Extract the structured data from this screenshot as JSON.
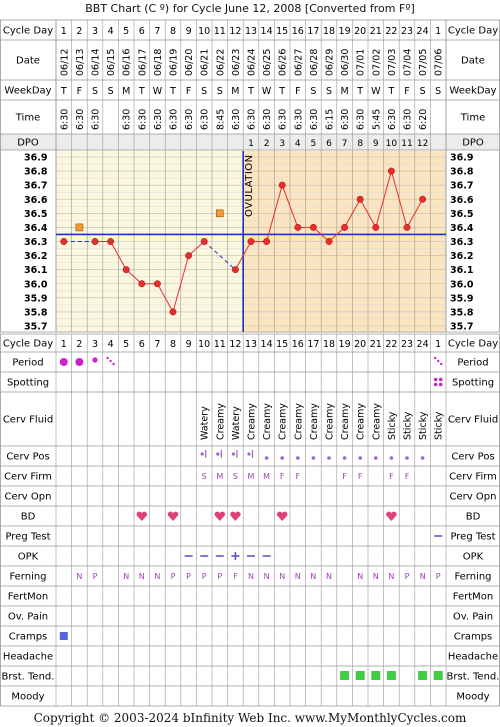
{
  "footer": "Copyright © 2003-2024 bInfinity Web Inc.    www.MyMonthlyCycles.com",
  "colors": {
    "temp_line": "#e03030",
    "grid": "#999999",
    "shade_pre": "#fbf7df",
    "shade_post": "#fbe4c0",
    "blue": "#2030c0",
    "heart": "#e0407a",
    "period": "#cc22cc",
    "green": "#44cc44",
    "ferning": "#9944aa",
    "cramp": "#5566dd"
  },
  "chart_data": {
    "type": "line",
    "title": "BBT Chart (C º) for Cycle June 12, 2008  [Converted from Fº]",
    "row_labels": {
      "cycle_day": "Cycle Day",
      "date": "Date",
      "weekday": "WeekDay",
      "time": "Time",
      "dpo": "DPO"
    },
    "cycle_days": [
      "1",
      "2",
      "3",
      "4",
      "5",
      "6",
      "7",
      "8",
      "9",
      "10",
      "11",
      "12",
      "13",
      "14",
      "15",
      "16",
      "17",
      "18",
      "19",
      "20",
      "21",
      "22",
      "23",
      "24",
      "1"
    ],
    "dates": [
      "06/12",
      "06/13",
      "06/14",
      "06/15",
      "06/16",
      "06/17",
      "06/18",
      "06/19",
      "06/20",
      "06/21",
      "06/22",
      "06/23",
      "06/24",
      "06/25",
      "06/26",
      "06/27",
      "06/28",
      "06/29",
      "06/30",
      "07/01",
      "07/02",
      "07/03",
      "07/04",
      "07/05",
      "07/06"
    ],
    "weekdays": [
      "T",
      "F",
      "S",
      "S",
      "M",
      "T",
      "W",
      "T",
      "F",
      "S",
      "S",
      "M",
      "T",
      "W",
      "T",
      "F",
      "S",
      "S",
      "M",
      "T",
      "W",
      "T",
      "F",
      "S",
      "S"
    ],
    "times": [
      "6:30",
      "6:30",
      "6:30",
      "",
      "6:30",
      "6:30",
      "6:30",
      "6:30",
      "6:30",
      "6:30",
      "8:45",
      "6:30",
      "6:30",
      "6:30",
      "6:30",
      "6:30",
      "6:30",
      "6:15",
      "6:30",
      "6:30",
      "5:45",
      "6:30",
      "6:30",
      "6:20",
      ""
    ],
    "dpo": [
      "",
      "",
      "",
      "",
      "",
      "",
      "",
      "",
      "",
      "",
      "",
      "",
      "1",
      "2",
      "3",
      "4",
      "5",
      "6",
      "7",
      "8",
      "9",
      "10",
      "11",
      "12",
      ""
    ],
    "y_ticks": [
      "36.9",
      "36.8",
      "36.7",
      "36.6",
      "36.5",
      "36.4",
      "36.3",
      "36.2",
      "36.1",
      "36.0",
      "35.9",
      "35.8",
      "35.7"
    ],
    "ylim": [
      35.7,
      36.9
    ],
    "temps": [
      36.3,
      null,
      36.3,
      36.3,
      36.1,
      36.0,
      36.0,
      35.8,
      36.2,
      36.3,
      null,
      36.1,
      36.3,
      36.3,
      36.7,
      36.4,
      36.4,
      36.3,
      36.4,
      36.6,
      36.4,
      36.8,
      36.4,
      36.6,
      null
    ],
    "discarded": [
      null,
      36.4,
      null,
      null,
      null,
      null,
      null,
      null,
      null,
      null,
      36.5,
      null,
      null,
      null,
      null,
      null,
      null,
      null,
      null,
      null,
      null,
      null,
      null,
      null,
      null
    ],
    "coverline": 36.35,
    "ovulation_day": 12,
    "ovulation_label": "OVULATION",
    "period": [
      "heavy",
      "heavy",
      "medium",
      "spotting",
      "",
      "",
      "",
      "",
      "",
      "",
      "",
      "",
      "",
      "",
      "",
      "",
      "",
      "",
      "",
      "",
      "",
      "",
      "",
      "",
      "spotting"
    ],
    "spotting": [
      "",
      "",
      "",
      "",
      "",
      "",
      "",
      "",
      "",
      "",
      "",
      "",
      "",
      "",
      "",
      "",
      "",
      "",
      "",
      "",
      "",
      "",
      "",
      "",
      "dots"
    ],
    "cerv_fluid": [
      "",
      "",
      "",
      "",
      "",
      "",
      "",
      "",
      "",
      "Watery",
      "Creamy",
      "Watery",
      "Creamy",
      "Creamy",
      "Creamy",
      "Creamy",
      "Creamy",
      "Creamy",
      "Creamy",
      "Creamy",
      "Creamy",
      "Sticky",
      "Sticky",
      "Sticky",
      "Sticky"
    ],
    "cerv_pos": [
      "",
      "",
      "",
      "",
      "",
      "",
      "",
      "",
      "",
      "hl",
      "hl",
      "hl",
      "hl",
      "l",
      "l",
      "l",
      "l",
      "l",
      "l",
      "l",
      "l",
      "l",
      "l",
      "l",
      ""
    ],
    "cerv_firm": [
      "",
      "",
      "",
      "",
      "",
      "",
      "",
      "",
      "",
      "S",
      "M",
      "S",
      "M",
      "M",
      "F",
      "F",
      "",
      "",
      "F",
      "F",
      "",
      "F",
      "F",
      "",
      ""
    ],
    "cerv_opn": [],
    "bd": [
      false,
      false,
      false,
      false,
      false,
      true,
      false,
      true,
      false,
      false,
      true,
      true,
      false,
      false,
      true,
      false,
      false,
      false,
      false,
      false,
      false,
      true,
      false,
      false,
      false
    ],
    "preg_test": [
      "",
      "",
      "",
      "",
      "",
      "",
      "",
      "",
      "",
      "",
      "",
      "",
      "",
      "",
      "",
      "",
      "",
      "",
      "",
      "",
      "",
      "",
      "",
      "",
      "neg"
    ],
    "opk": [
      "",
      "",
      "",
      "",
      "",
      "",
      "",
      "",
      "-",
      "-",
      "-",
      "+",
      "-",
      "-",
      "",
      "",
      "",
      "",
      "",
      "",
      "",
      "",
      "",
      "",
      ""
    ],
    "ferning": [
      "",
      "N",
      "P",
      "",
      "N",
      "N",
      "N",
      "P",
      "P",
      "P",
      "P",
      "F",
      "N",
      "N",
      "N",
      "N",
      "N",
      "N",
      "",
      "N",
      "N",
      "N",
      "P",
      "N",
      "P"
    ],
    "cramps": [
      true,
      false,
      false,
      false,
      false,
      false,
      false,
      false,
      false,
      false,
      false,
      false,
      false,
      false,
      false,
      false,
      false,
      false,
      false,
      false,
      false,
      false,
      false,
      false,
      false
    ],
    "brst_tend": [
      false,
      false,
      false,
      false,
      false,
      false,
      false,
      false,
      false,
      false,
      false,
      false,
      false,
      false,
      false,
      false,
      false,
      false,
      true,
      true,
      true,
      true,
      false,
      true,
      true
    ],
    "bottom_rows": [
      "Period",
      "Spotting",
      "Cerv Fluid",
      "Cerv Pos",
      "Cerv Firm",
      "Cerv Opn",
      "BD",
      "Preg Test",
      "OPK",
      "Ferning",
      "FertMon",
      "Ov. Pain",
      "Cramps",
      "Headache",
      "Brst. Tend.",
      "Moody"
    ]
  }
}
